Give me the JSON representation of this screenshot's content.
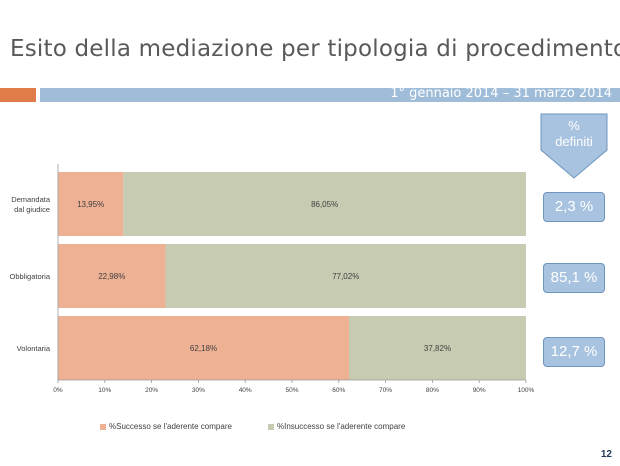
{
  "slide": {
    "title": "Esito della mediazione per tipologia di procedimento",
    "date_range": "1° gennaio 2014 – 31 marzo 2014",
    "page_number": "12"
  },
  "callout": {
    "header_line1": "%",
    "header_line2": "definiti",
    "values": [
      "2,3 %",
      "85,1 %",
      "12,7 %"
    ]
  },
  "colors": {
    "success": "#eeb193",
    "failure": "#c6cbb2",
    "accent_orange": "#e07b4a",
    "accent_blue": "#9fbcd8",
    "box_fill": "#a7c3df"
  },
  "chart_data": {
    "type": "bar",
    "orientation": "horizontal",
    "stacked": true,
    "categories": [
      "Demandata dal giudice",
      "Obbligatoria",
      "Volontaria"
    ],
    "series": [
      {
        "name": "%Successo se l'aderente compare",
        "values": [
          13.95,
          22.98,
          62.18
        ],
        "labels": [
          "13,95%",
          "22,98%",
          "62,18%"
        ]
      },
      {
        "name": "%Insuccesso se l'aderente compare",
        "values": [
          86.05,
          77.02,
          37.82
        ],
        "labels": [
          "86,05%",
          "77,02%",
          "37,82%"
        ]
      }
    ],
    "xlim": [
      0,
      100
    ],
    "xticks": [
      "0%",
      "10%",
      "20%",
      "30%",
      "40%",
      "50%",
      "60%",
      "70%",
      "80%",
      "90%",
      "100%"
    ],
    "legend_position": "bottom",
    "grid": false
  }
}
